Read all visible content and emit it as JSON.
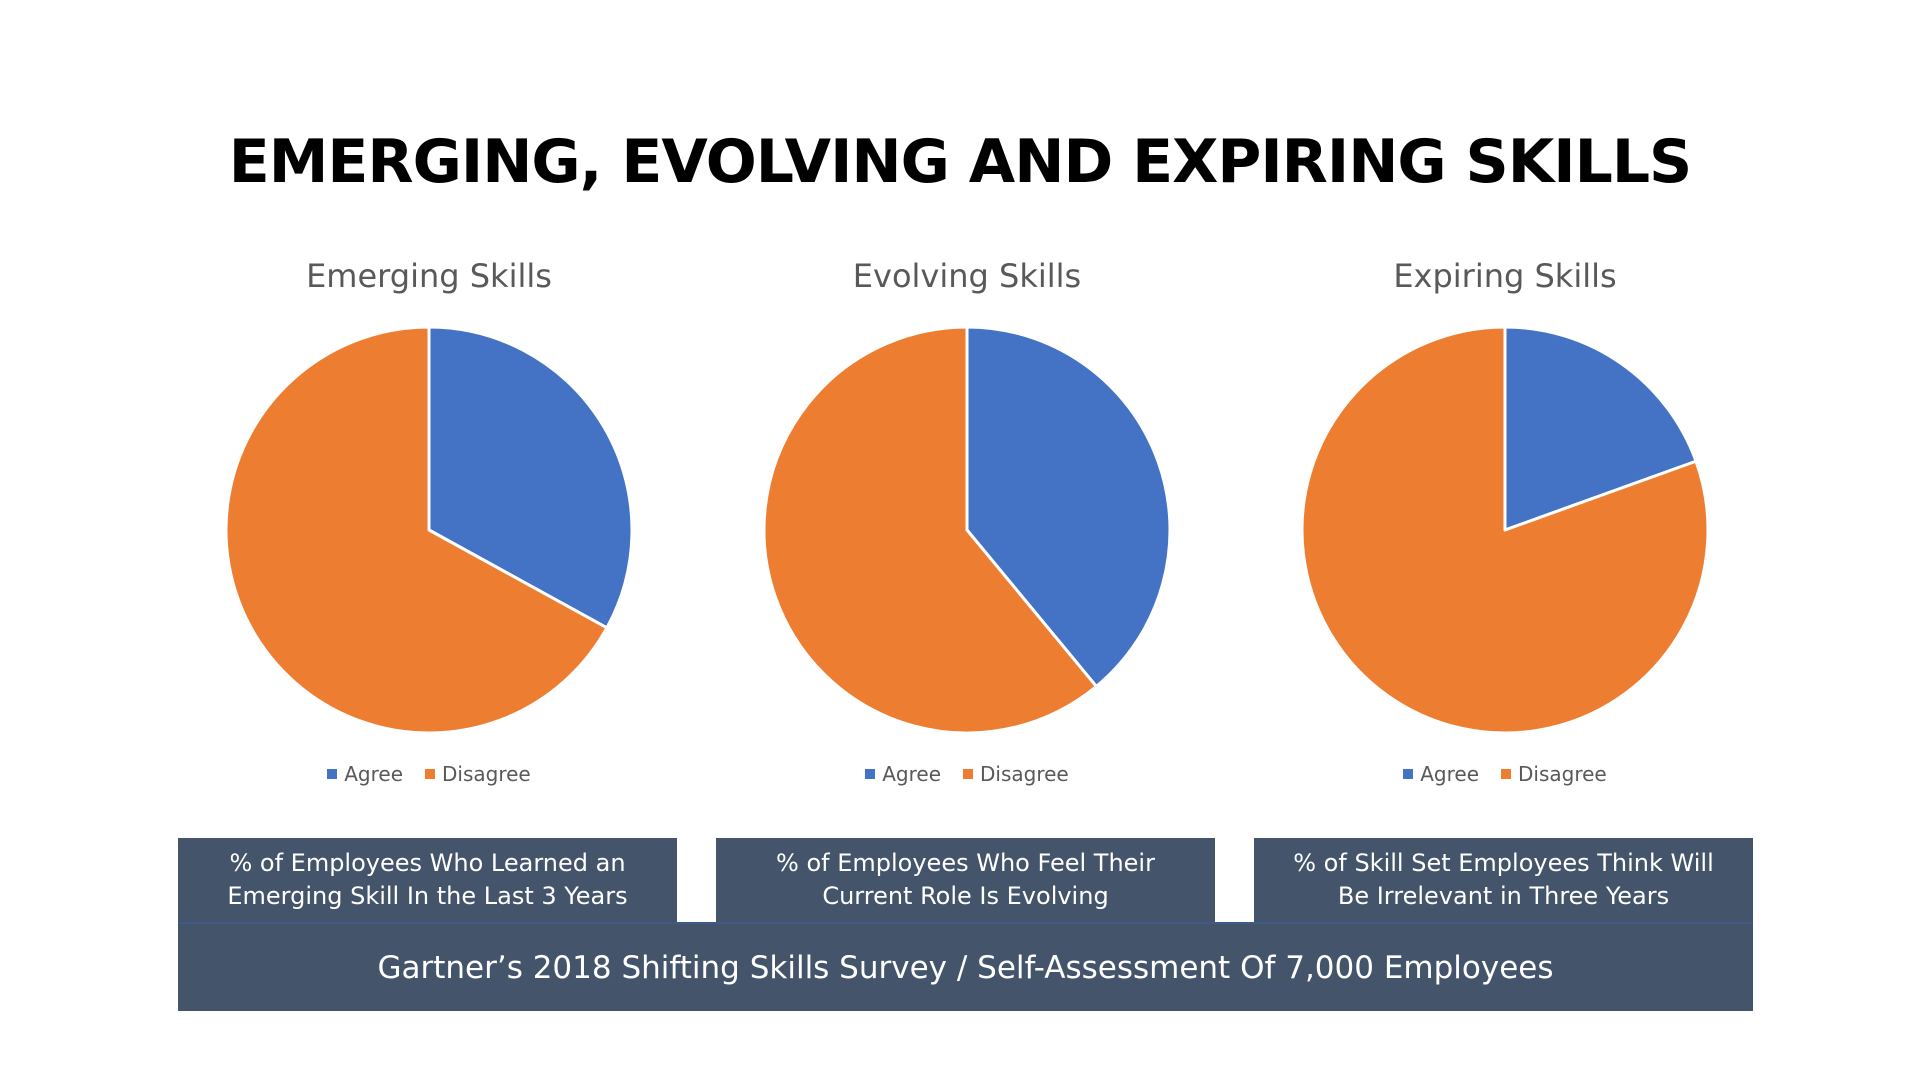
{
  "page": {
    "title": "EMERGING, EVOLVING AND EXPIRING SKILLS",
    "source": "Gartner’s 2018 Shifting Skills Survey / Self-Assessment Of 7,000 Employees"
  },
  "colors": {
    "agree": "#4472c4",
    "disagree": "#ed7d31",
    "caption_bg": "#44546a",
    "slice_border": "#ffffff"
  },
  "chart_data": [
    {
      "type": "pie",
      "title": "Emerging Skills",
      "categories": [
        "Agree",
        "Disagree"
      ],
      "values": [
        33,
        67
      ],
      "legend": "bottom",
      "caption": "% of Employees Who Learned an Emerging Skill In the Last 3 Years"
    },
    {
      "type": "pie",
      "title": "Evolving Skills",
      "categories": [
        "Agree",
        "Disagree"
      ],
      "values": [
        39,
        61
      ],
      "legend": "bottom",
      "caption": "% of Employees Who Feel Their Current Role Is Evolving"
    },
    {
      "type": "pie",
      "title": "Expiring Skills",
      "categories": [
        "Agree",
        "Disagree"
      ],
      "values": [
        19.5,
        80.5
      ],
      "legend": "bottom",
      "caption": "% of Skill Set Employees Think Will Be Irrelevant in Three Years"
    }
  ]
}
